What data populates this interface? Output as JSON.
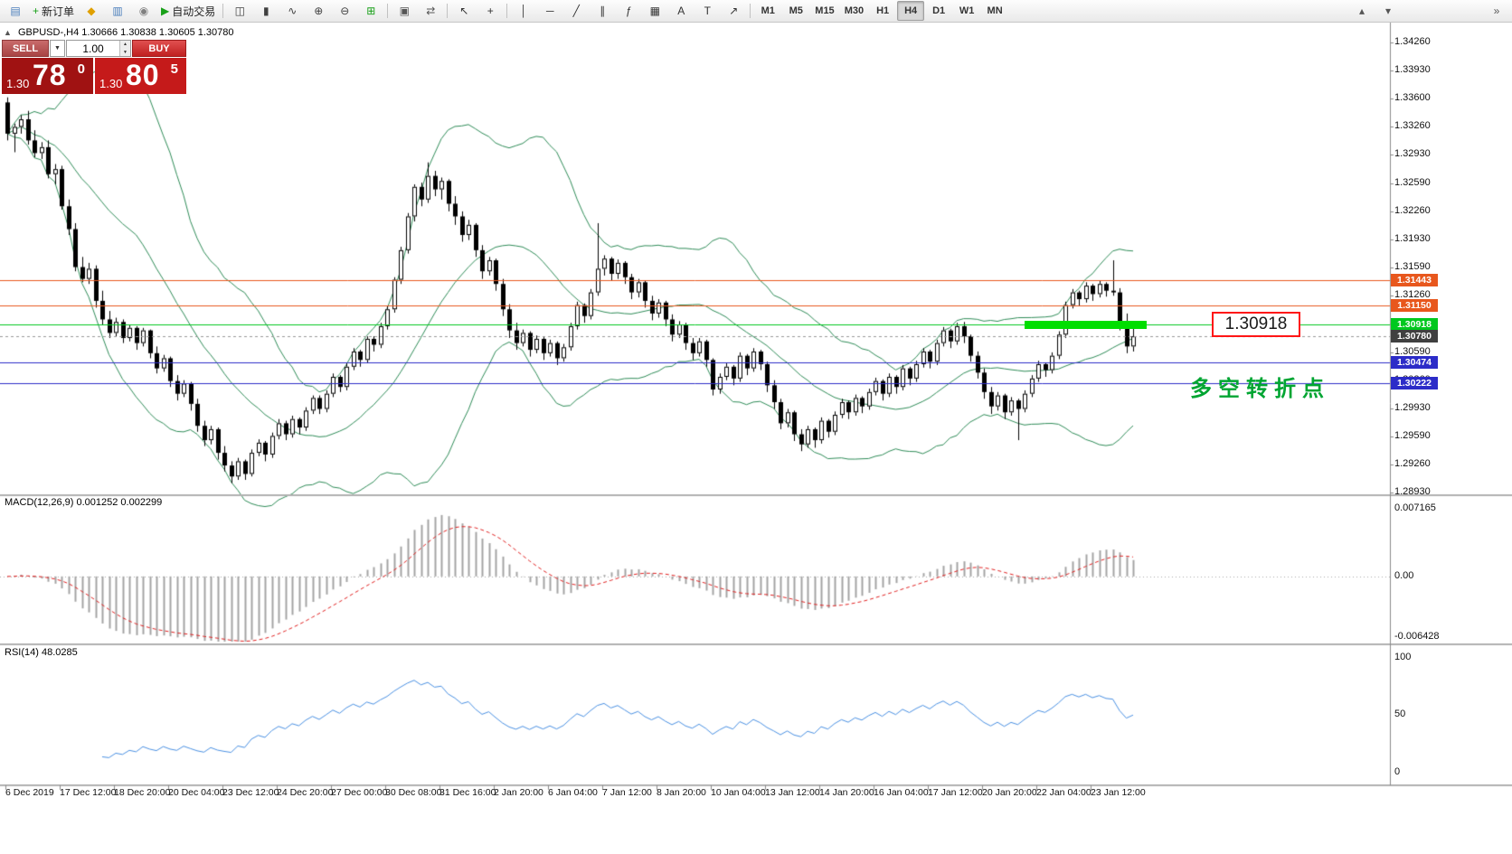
{
  "toolbar": {
    "items": [
      {
        "name": "new-chart-button",
        "glyph": "▤",
        "color": "#4a7ebb"
      },
      {
        "name": "new-order-button",
        "glyph": "+",
        "color": "#18a018",
        "label": "新订单"
      },
      {
        "name": "favorites-button",
        "glyph": "◆",
        "color": "#e0a000"
      },
      {
        "name": "market-watch-button",
        "glyph": "▥",
        "color": "#4a7ebb"
      },
      {
        "name": "navigator-button",
        "glyph": "◉",
        "color": "#808080"
      },
      {
        "name": "autotrading-button",
        "glyph": "▶",
        "color": "#18a018",
        "label": "自动交易"
      },
      {
        "sep": true
      },
      {
        "name": "bars-chart-button",
        "glyph": "◫",
        "color": "#404040"
      },
      {
        "name": "candles-chart-button",
        "glyph": "▮",
        "color": "#404040"
      },
      {
        "name": "line-chart-button",
        "glyph": "∿",
        "color": "#404040"
      },
      {
        "name": "zoom-in-button",
        "glyph": "⊕",
        "color": "#404040"
      },
      {
        "name": "zoom-out-button",
        "glyph": "⊖",
        "color": "#404040"
      },
      {
        "name": "tile-windows-button",
        "glyph": "⊞",
        "color": "#18a018"
      },
      {
        "sep": true
      },
      {
        "name": "arrange-windows-button",
        "glyph": "▣",
        "color": "#555555"
      },
      {
        "name": "auto-scroll-button",
        "glyph": "⇄",
        "color": "#555555"
      },
      {
        "sep": true
      },
      {
        "name": "cursor-button",
        "glyph": "↖",
        "color": "#333333"
      },
      {
        "name": "crosshair-button",
        "glyph": "+",
        "color": "#333333"
      },
      {
        "sep": true
      },
      {
        "name": "vertical-line-button",
        "glyph": "│",
        "color": "#333333"
      },
      {
        "name": "horizontal-line-button",
        "glyph": "─",
        "color": "#333333"
      },
      {
        "name": "trendline-button",
        "glyph": "╱",
        "color": "#333333"
      },
      {
        "name": "channel-button",
        "glyph": "∥",
        "color": "#333333"
      },
      {
        "name": "fibonacci-button",
        "glyph": "ƒ",
        "color": "#333333"
      },
      {
        "name": "shapes-button",
        "glyph": "▦",
        "color": "#333333"
      },
      {
        "name": "text-button",
        "glyph": "A",
        "color": "#333333"
      },
      {
        "name": "label-button",
        "glyph": "T",
        "color": "#333333"
      },
      {
        "name": "arrows-button",
        "glyph": "↗",
        "color": "#333333"
      },
      {
        "sep": true
      }
    ],
    "timeframes": [
      "M1",
      "M5",
      "M15",
      "M30",
      "H1",
      "H4",
      "D1",
      "W1",
      "MN"
    ],
    "active_timeframe": "H4",
    "right_items": [
      {
        "name": "scroll-up-button",
        "glyph": "▴",
        "color": "#555555"
      },
      {
        "name": "scroll-down-button",
        "glyph": "▾",
        "color": "#555555"
      },
      {
        "gap": true
      },
      {
        "name": "toolbar-overflow-button",
        "glyph": "»",
        "color": "#555555"
      }
    ]
  },
  "symbol_header": {
    "collapse_arrow": "▲",
    "symbol": "GBPUSD-,H4",
    "ohlc": "1.30666 1.30838 1.30605 1.30780"
  },
  "one_click": {
    "sell_label": "SELL",
    "buy_label": "BUY",
    "volume": "1.00",
    "dropdown_arrow": "▼",
    "spinner_up": "▲",
    "spinner_down": "▼",
    "sell_price": {
      "prefix": "1.30",
      "big": "78",
      "sup": "0"
    },
    "buy_price": {
      "prefix": "1.30",
      "big": "80",
      "sup": "5"
    }
  },
  "price_scale_labels": [
    "1.34260",
    "1.33930",
    "1.33600",
    "1.33260",
    "1.32930",
    "1.32590",
    "1.32260",
    "1.31930",
    "1.31590",
    "1.31260",
    "1.30930",
    "1.30590",
    "1.30260",
    "1.29930",
    "1.29590",
    "1.29260",
    "1.28930"
  ],
  "levels": [
    {
      "name": "resistance-line-1",
      "price": 1.31443,
      "label": "1.31443",
      "color": "#E8571D",
      "style": "solid"
    },
    {
      "name": "resistance-line-2",
      "price": 1.3115,
      "label": "1.31150",
      "color": "#E8571D",
      "style": "solid"
    },
    {
      "name": "pivot-line",
      "price": 1.30918,
      "label": "1.30918",
      "color": "#00C81E",
      "style": "solid"
    },
    {
      "name": "current-price",
      "price": 1.3078,
      "label": "1.30780",
      "color": "#404040",
      "style": "dashed"
    },
    {
      "name": "support-line-1",
      "price": 1.30474,
      "label": "1.30474",
      "color": "#2C2CC8",
      "style": "solid"
    },
    {
      "name": "support-line-2",
      "price": 1.30222,
      "label": "1.30222",
      "color": "#2C2CC8",
      "style": "solid"
    }
  ],
  "annotations": {
    "price_box_text": "1.30918",
    "turning_point_text": "多空转折点",
    "highlight_bar": {
      "price": 1.30918,
      "x_start_index": 150,
      "x_end_index": 168,
      "color": "#00DE00"
    }
  },
  "macd_panel": {
    "label": "MACD(12,26,9) 0.001252 0.002299",
    "scale_labels": [
      "0.007165",
      "0.00",
      "-0.006428"
    ],
    "histogram_color": "#A4A4A4",
    "signal_color": "#E02020"
  },
  "rsi_panel": {
    "label": "RSI(14) 48.0285",
    "scale_labels": [
      "100",
      "50",
      "0"
    ],
    "line_color": "#4a90e2"
  },
  "time_axis_labels": [
    "6 Dec 2019",
    "17 Dec 12:00",
    "18 Dec 20:00",
    "20 Dec 04:00",
    "23 Dec 12:00",
    "24 Dec 20:00",
    "27 Dec 00:00",
    "30 Dec 08:00",
    "31 Dec 16:00",
    "2 Jan 20:00",
    "6 Jan 04:00",
    "7 Jan 12:00",
    "8 Jan 20:00",
    "10 Jan 04:00",
    "13 Jan 12:00",
    "14 Jan 20:00",
    "16 Jan 04:00",
    "17 Jan 12:00",
    "20 Jan 20:00",
    "22 Jan 04:00",
    "23 Jan 12:00"
  ],
  "chart_data": {
    "type": "candlestick",
    "symbol": "GBPUSD",
    "timeframe": "H4",
    "ylim": [
      1.2893,
      1.3426
    ],
    "indicators": {
      "bollinger": {
        "period": 20,
        "deviation": 2,
        "color": "#2E8B57"
      },
      "macd": {
        "fast": 12,
        "slow": 26,
        "signal": 9,
        "current_main": 0.001252,
        "current_signal": 0.002299,
        "scale_max": 0.007165,
        "scale_min": -0.006428
      },
      "rsi": {
        "period": 14,
        "current": 48.0285
      }
    },
    "candles": [
      [
        1.3355,
        1.3361,
        1.331,
        1.3318
      ],
      [
        1.3318,
        1.333,
        1.3296,
        1.3326
      ],
      [
        1.3326,
        1.334,
        1.3318,
        1.3335
      ],
      [
        1.3335,
        1.3345,
        1.3305,
        1.331
      ],
      [
        1.331,
        1.3322,
        1.329,
        1.3295
      ],
      [
        1.3295,
        1.3308,
        1.3288,
        1.3302
      ],
      [
        1.3302,
        1.331,
        1.3265,
        1.327
      ],
      [
        1.327,
        1.3282,
        1.3258,
        1.3276
      ],
      [
        1.3276,
        1.328,
        1.3228,
        1.3232
      ],
      [
        1.3232,
        1.324,
        1.3198,
        1.3205
      ],
      [
        1.3205,
        1.3212,
        1.3155,
        1.316
      ],
      [
        1.316,
        1.3172,
        1.3142,
        1.3146
      ],
      [
        1.3146,
        1.3165,
        1.314,
        1.3158
      ],
      [
        1.3158,
        1.3162,
        1.3112,
        1.312
      ],
      [
        1.312,
        1.3132,
        1.3092,
        1.3098
      ],
      [
        1.3098,
        1.3108,
        1.3076,
        1.3082
      ],
      [
        1.3082,
        1.31,
        1.3078,
        1.3095
      ],
      [
        1.3095,
        1.3098,
        1.307,
        1.3076
      ],
      [
        1.3076,
        1.3092,
        1.3072,
        1.3088
      ],
      [
        1.3088,
        1.309,
        1.3062,
        1.307
      ],
      [
        1.307,
        1.3088,
        1.3066,
        1.3085
      ],
      [
        1.3085,
        1.3086,
        1.3052,
        1.3058
      ],
      [
        1.3058,
        1.3066,
        1.3034,
        1.304
      ],
      [
        1.304,
        1.3056,
        1.3036,
        1.3052
      ],
      [
        1.3052,
        1.3054,
        1.3018,
        1.3025
      ],
      [
        1.3025,
        1.3032,
        1.3002,
        1.301
      ],
      [
        1.301,
        1.3026,
        1.3006,
        1.3022
      ],
      [
        1.3022,
        1.3024,
        1.299,
        1.2998
      ],
      [
        1.2998,
        1.3004,
        1.2965,
        1.2972
      ],
      [
        1.2972,
        1.2978,
        1.2948,
        1.2955
      ],
      [
        1.2955,
        1.2972,
        1.295,
        1.2968
      ],
      [
        1.2968,
        1.297,
        1.2932,
        1.294
      ],
      [
        1.294,
        1.2948,
        1.2918,
        1.2925
      ],
      [
        1.2925,
        1.293,
        1.2904,
        1.2912
      ],
      [
        1.2912,
        1.2934,
        1.2908,
        1.293
      ],
      [
        1.293,
        1.2932,
        1.2908,
        1.2915
      ],
      [
        1.2915,
        1.2944,
        1.2912,
        1.294
      ],
      [
        1.294,
        1.2956,
        1.2936,
        1.2952
      ],
      [
        1.2952,
        1.2954,
        1.293,
        1.2938
      ],
      [
        1.2938,
        1.2964,
        1.2934,
        1.296
      ],
      [
        1.296,
        1.298,
        1.2956,
        1.2975
      ],
      [
        1.2975,
        1.2978,
        1.2955,
        1.2962
      ],
      [
        1.2962,
        1.2984,
        1.2958,
        1.298
      ],
      [
        1.298,
        1.2982,
        1.2962,
        1.297
      ],
      [
        1.297,
        1.2994,
        1.2966,
        1.299
      ],
      [
        1.299,
        1.3008,
        1.2986,
        1.3005
      ],
      [
        1.3005,
        1.3008,
        1.2986,
        1.2992
      ],
      [
        1.2992,
        1.3014,
        1.2988,
        1.301
      ],
      [
        1.301,
        1.3034,
        1.3006,
        1.303
      ],
      [
        1.303,
        1.3032,
        1.3012,
        1.3018
      ],
      [
        1.3018,
        1.3046,
        1.3014,
        1.3042
      ],
      [
        1.3042,
        1.3064,
        1.3038,
        1.306
      ],
      [
        1.306,
        1.3062,
        1.3042,
        1.305
      ],
      [
        1.305,
        1.3078,
        1.3046,
        1.3075
      ],
      [
        1.3075,
        1.3078,
        1.306,
        1.3068
      ],
      [
        1.3068,
        1.3094,
        1.3064,
        1.309
      ],
      [
        1.309,
        1.3114,
        1.3086,
        1.311
      ],
      [
        1.311,
        1.3148,
        1.3106,
        1.3145
      ],
      [
        1.3145,
        1.3184,
        1.314,
        1.318
      ],
      [
        1.318,
        1.3224,
        1.3176,
        1.322
      ],
      [
        1.322,
        1.3258,
        1.3214,
        1.3255
      ],
      [
        1.3255,
        1.326,
        1.3232,
        1.324
      ],
      [
        1.324,
        1.3284,
        1.3236,
        1.3268
      ],
      [
        1.3268,
        1.3274,
        1.3244,
        1.3252
      ],
      [
        1.3252,
        1.3266,
        1.324,
        1.3262
      ],
      [
        1.3262,
        1.3264,
        1.3226,
        1.3235
      ],
      [
        1.3235,
        1.3244,
        1.321,
        1.322
      ],
      [
        1.322,
        1.3226,
        1.319,
        1.3198
      ],
      [
        1.3198,
        1.3216,
        1.3192,
        1.321
      ],
      [
        1.321,
        1.3212,
        1.3172,
        1.318
      ],
      [
        1.318,
        1.3186,
        1.3146,
        1.3155
      ],
      [
        1.3155,
        1.3172,
        1.315,
        1.3168
      ],
      [
        1.3168,
        1.317,
        1.3132,
        1.314
      ],
      [
        1.314,
        1.3146,
        1.3102,
        1.311
      ],
      [
        1.311,
        1.3116,
        1.3076,
        1.3085
      ],
      [
        1.3085,
        1.3094,
        1.3062,
        1.307
      ],
      [
        1.307,
        1.3086,
        1.3066,
        1.3082
      ],
      [
        1.3082,
        1.3084,
        1.3054,
        1.3062
      ],
      [
        1.3062,
        1.3079,
        1.3058,
        1.3075
      ],
      [
        1.3075,
        1.3077,
        1.305,
        1.3058
      ],
      [
        1.3058,
        1.3074,
        1.3054,
        1.307
      ],
      [
        1.307,
        1.3072,
        1.3044,
        1.3052
      ],
      [
        1.3052,
        1.3069,
        1.3048,
        1.3065
      ],
      [
        1.3065,
        1.3094,
        1.3061,
        1.309
      ],
      [
        1.309,
        1.3119,
        1.3086,
        1.3115
      ],
      [
        1.3115,
        1.3117,
        1.3094,
        1.3102
      ],
      [
        1.3102,
        1.3134,
        1.3098,
        1.313
      ],
      [
        1.313,
        1.3212,
        1.3126,
        1.3158
      ],
      [
        1.3158,
        1.3174,
        1.315,
        1.317
      ],
      [
        1.317,
        1.3172,
        1.3144,
        1.3152
      ],
      [
        1.3152,
        1.3169,
        1.3146,
        1.3165
      ],
      [
        1.3165,
        1.3167,
        1.314,
        1.3148
      ],
      [
        1.3148,
        1.3152,
        1.3122,
        1.313
      ],
      [
        1.313,
        1.3146,
        1.3124,
        1.3142
      ],
      [
        1.3142,
        1.3144,
        1.3112,
        1.312
      ],
      [
        1.312,
        1.3126,
        1.3097,
        1.3105
      ],
      [
        1.3105,
        1.3122,
        1.31,
        1.3118
      ],
      [
        1.3118,
        1.312,
        1.309,
        1.3098
      ],
      [
        1.3098,
        1.3104,
        1.3072,
        1.308
      ],
      [
        1.308,
        1.3096,
        1.3076,
        1.3092
      ],
      [
        1.3092,
        1.3094,
        1.3062,
        1.307
      ],
      [
        1.307,
        1.3076,
        1.305,
        1.3058
      ],
      [
        1.3058,
        1.3076,
        1.3054,
        1.3072
      ],
      [
        1.3072,
        1.3074,
        1.3042,
        1.305
      ],
      [
        1.305,
        1.3052,
        1.3008,
        1.3015
      ],
      [
        1.3015,
        1.3034,
        1.301,
        1.303
      ],
      [
        1.303,
        1.3046,
        1.3026,
        1.3042
      ],
      [
        1.3042,
        1.3044,
        1.302,
        1.3028
      ],
      [
        1.3028,
        1.3059,
        1.3024,
        1.3055
      ],
      [
        1.3055,
        1.3057,
        1.3032,
        1.304
      ],
      [
        1.304,
        1.3064,
        1.3036,
        1.306
      ],
      [
        1.306,
        1.3062,
        1.3038,
        1.3045
      ],
      [
        1.3045,
        1.3048,
        1.3012,
        1.302
      ],
      [
        1.302,
        1.3026,
        1.2992,
        1.3
      ],
      [
        1.3,
        1.3004,
        1.2968,
        1.2975
      ],
      [
        1.2975,
        1.2992,
        1.297,
        1.2988
      ],
      [
        1.2988,
        1.299,
        1.2954,
        1.2962
      ],
      [
        1.2962,
        1.2968,
        1.2942,
        1.295
      ],
      [
        1.295,
        1.2972,
        1.2946,
        1.2968
      ],
      [
        1.2968,
        1.297,
        1.2946,
        1.2955
      ],
      [
        1.2955,
        1.2982,
        1.2951,
        1.2978
      ],
      [
        1.2978,
        1.298,
        1.2958,
        1.2965
      ],
      [
        1.2965,
        1.2989,
        1.2961,
        1.2985
      ],
      [
        1.2985,
        1.3004,
        1.2981,
        1.3
      ],
      [
        1.3,
        1.3002,
        1.298,
        1.2988
      ],
      [
        1.2988,
        1.3009,
        1.2984,
        1.3005
      ],
      [
        1.3005,
        1.3007,
        1.2987,
        1.2995
      ],
      [
        1.2995,
        1.3016,
        1.2991,
        1.3012
      ],
      [
        1.3012,
        1.3029,
        1.3008,
        1.3025
      ],
      [
        1.3025,
        1.3027,
        1.3002,
        1.301
      ],
      [
        1.301,
        1.3034,
        1.3006,
        1.303
      ],
      [
        1.303,
        1.3032,
        1.301,
        1.3018
      ],
      [
        1.3018,
        1.3044,
        1.3014,
        1.304
      ],
      [
        1.304,
        1.3042,
        1.302,
        1.3028
      ],
      [
        1.3028,
        1.3049,
        1.3024,
        1.3045
      ],
      [
        1.3045,
        1.3064,
        1.3041,
        1.306
      ],
      [
        1.306,
        1.3062,
        1.304,
        1.3048
      ],
      [
        1.3048,
        1.3074,
        1.3044,
        1.307
      ],
      [
        1.307,
        1.3089,
        1.3066,
        1.3085
      ],
      [
        1.3085,
        1.3087,
        1.3064,
        1.3072
      ],
      [
        1.3072,
        1.3094,
        1.3068,
        1.309
      ],
      [
        1.309,
        1.3095,
        1.307,
        1.3078
      ],
      [
        1.3078,
        1.308,
        1.3048,
        1.3055
      ],
      [
        1.3055,
        1.306,
        1.3028,
        1.3035
      ],
      [
        1.3035,
        1.304,
        1.3004,
        1.3012
      ],
      [
        1.3012,
        1.3018,
        1.2986,
        1.2995
      ],
      [
        1.2995,
        1.3012,
        1.299,
        1.3008
      ],
      [
        1.3008,
        1.301,
        1.298,
        1.2988
      ],
      [
        1.2988,
        1.3006,
        1.2984,
        1.3002
      ],
      [
        1.3002,
        1.3004,
        1.2955,
        1.2992
      ],
      [
        1.2992,
        1.3014,
        1.2988,
        1.301
      ],
      [
        1.301,
        1.3032,
        1.3006,
        1.3028
      ],
      [
        1.3028,
        1.3049,
        1.3024,
        1.3045
      ],
      [
        1.3045,
        1.3047,
        1.303,
        1.3038
      ],
      [
        1.3038,
        1.3059,
        1.3034,
        1.3055
      ],
      [
        1.3055,
        1.3084,
        1.3051,
        1.308
      ],
      [
        1.308,
        1.3119,
        1.3076,
        1.3115
      ],
      [
        1.3115,
        1.3134,
        1.3111,
        1.313
      ],
      [
        1.313,
        1.3132,
        1.3114,
        1.3122
      ],
      [
        1.3122,
        1.3142,
        1.3118,
        1.3138
      ],
      [
        1.3138,
        1.314,
        1.312,
        1.3128
      ],
      [
        1.3128,
        1.3144,
        1.3124,
        1.314
      ],
      [
        1.314,
        1.3142,
        1.3125,
        1.3132
      ],
      [
        1.3132,
        1.3168,
        1.3126,
        1.313
      ],
      [
        1.313,
        1.3135,
        1.3085,
        1.3095
      ],
      [
        1.3095,
        1.3105,
        1.3058,
        1.3066
      ],
      [
        1.3066,
        1.3088,
        1.306,
        1.3078
      ]
    ]
  }
}
